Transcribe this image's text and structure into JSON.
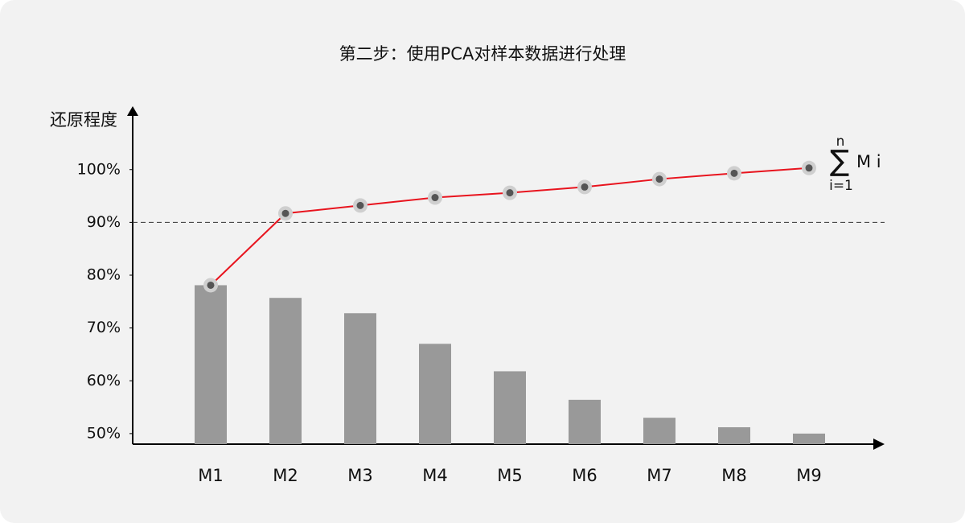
{
  "chart_data": {
    "type": "combo",
    "title": "第二步：使用PCA对样本数据进行处理",
    "y_label": "还原程度",
    "categories": [
      "M1",
      "M2",
      "M3",
      "M4",
      "M5",
      "M6",
      "M7",
      "M8",
      "M9"
    ],
    "series": [
      {
        "type": "bar",
        "color": "#999999",
        "values": [
          78.1,
          75.7,
          72.8,
          67.0,
          61.8,
          56.4,
          53.0,
          51.2,
          50.0
        ]
      },
      {
        "type": "line",
        "color": "#e8141e",
        "values": [
          78.1,
          91.7,
          93.2,
          94.7,
          95.6,
          96.7,
          98.2,
          99.3,
          100.3
        ]
      }
    ],
    "ylim": [
      48,
      112
    ],
    "yticks": [
      {
        "value": 50,
        "label": "50%"
      },
      {
        "value": 60,
        "label": "60%"
      },
      {
        "value": 70,
        "label": "70%"
      },
      {
        "value": 80,
        "label": "80%"
      },
      {
        "value": 90,
        "label": "90%"
      },
      {
        "value": 100,
        "label": "100%"
      }
    ],
    "threshold": 90,
    "annotation": {
      "symbol": "∑",
      "upper": "n",
      "lower": "i=1",
      "label": "M i"
    }
  }
}
